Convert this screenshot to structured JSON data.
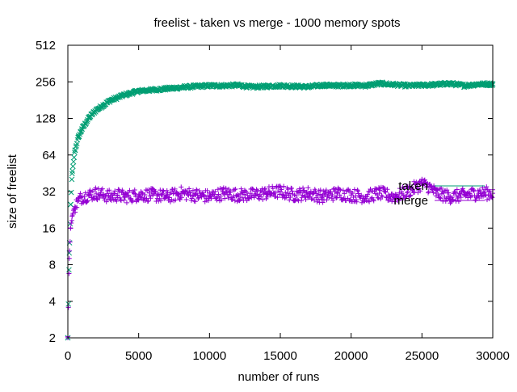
{
  "chart_data": {
    "type": "scatter",
    "title": "freelist - taken vs merge - 1000 memory spots",
    "xlabel": "number of runs",
    "ylabel": "size of freelist",
    "xlim": [
      0,
      30000
    ],
    "ylim": [
      2,
      512
    ],
    "y_scale": "log2",
    "x_ticks": [
      0,
      5000,
      10000,
      15000,
      20000,
      25000,
      30000
    ],
    "x_tick_labels": [
      "0",
      "5000",
      "10000",
      "15000",
      "20000",
      "25000",
      "30000"
    ],
    "y_ticks": [
      2,
      4,
      8,
      16,
      32,
      64,
      128,
      256,
      512
    ],
    "y_tick_labels": [
      "2",
      "4",
      "8",
      "16",
      "32",
      "64",
      "128",
      "256",
      "512"
    ],
    "grid": false,
    "legend_position": "right, inside plot at y≈32",
    "series": [
      {
        "name": "taken",
        "marker": "x",
        "color": "#009e73",
        "x": [
          0,
          100,
          200,
          300,
          500,
          750,
          1000,
          1500,
          2000,
          3000,
          4000,
          5000,
          6000,
          7000,
          8000,
          9000,
          10000,
          11000,
          12000,
          13000,
          14000,
          15000,
          16000,
          17000,
          18000,
          19000,
          20000,
          21000,
          22000,
          23000,
          24000,
          25000,
          26000,
          27000,
          28000,
          29000,
          30000
        ],
        "values": [
          2,
          10,
          25,
          45,
          70,
          90,
          105,
          130,
          150,
          180,
          200,
          215,
          220,
          225,
          230,
          235,
          238,
          238,
          240,
          232,
          235,
          238,
          235,
          233,
          240,
          238,
          240,
          238,
          248,
          243,
          238,
          240,
          243,
          248,
          238,
          245,
          245
        ]
      },
      {
        "name": "merge",
        "marker": "+",
        "color": "#9400d3",
        "x": [
          0,
          100,
          200,
          300,
          500,
          750,
          1000,
          1500,
          2000,
          2500,
          3000,
          3500,
          4000,
          5000,
          6000,
          7000,
          8000,
          9000,
          10000,
          11000,
          12000,
          13000,
          14000,
          15000,
          16000,
          17000,
          18000,
          19000,
          20000,
          21000,
          22000,
          23000,
          24000,
          25000,
          25500,
          26000,
          27000,
          28000,
          29000,
          30000
        ],
        "values": [
          2,
          9,
          16,
          20,
          24,
          27,
          29,
          30,
          31,
          30,
          29,
          30,
          29,
          30,
          30,
          29,
          31,
          30,
          29,
          31,
          30,
          30,
          31,
          32,
          30,
          31,
          29,
          31,
          30,
          29,
          31,
          29,
          32,
          37,
          35,
          31,
          29,
          30,
          31,
          31
        ]
      }
    ]
  }
}
